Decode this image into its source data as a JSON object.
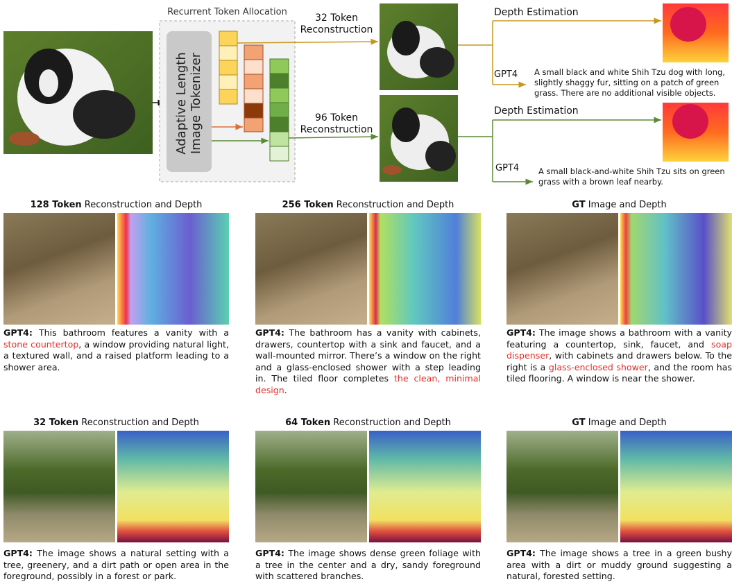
{
  "top": {
    "allocation_title": "Recurrent Token Allocation",
    "tokenizer_lines": [
      "Adaptive Length",
      "Image Tokenizer"
    ],
    "branches": [
      {
        "reconstruction_lines": [
          "32 Token",
          "Reconstruction"
        ],
        "depth_label": "Depth Estimation",
        "gpt_label": "GPT4",
        "caption": "A small black and white Shih Tzu dog with long, slightly shaggy fur, sitting on a patch of green grass. There are no additional visible objects."
      },
      {
        "reconstruction_lines": [
          "96 Token",
          "Reconstruction"
        ],
        "depth_label": "Depth Estimation",
        "gpt_label": "GPT4",
        "caption": "A small black-and-white Shih Tzu sits on green grass with a brown leaf nearby."
      }
    ]
  },
  "panels": [
    {
      "title_bold": "128 Token",
      "title_rest": " Reconstruction and Depth",
      "caption_label": "GPT4:",
      "caption": [
        {
          "text": " This bathroom features a vanity with a "
        },
        {
          "text": "stone countertop",
          "red": true
        },
        {
          "text": ", a window providing natural light, a textured wall, and a raised platform leading to a shower area."
        }
      ]
    },
    {
      "title_bold": "256 Token",
      "title_rest": " Reconstruction and Depth",
      "caption_label": "GPT4:",
      "caption": [
        {
          "text": " The bathroom has a vanity with cabinets, drawers, countertop with a sink and faucet, and a wall-mounted mirror. There’s a window on the right and a glass-enclosed shower with a step leading in. The tiled floor completes "
        },
        {
          "text": "the clean, minimal design",
          "red": true
        },
        {
          "text": "."
        }
      ]
    },
    {
      "title_bold": "GT",
      "title_rest": " Image and Depth",
      "caption_label": "GPT4:",
      "caption": [
        {
          "text": " The image shows a bathroom with a vanity featuring a countertop, sink, faucet, and "
        },
        {
          "text": "soap dispenser",
          "red": true
        },
        {
          "text": ", with cabinets and drawers below. To the right is a "
        },
        {
          "text": "glass-enclosed shower",
          "red": true
        },
        {
          "text": ", and the room has tiled flooring. A window is near the shower."
        }
      ]
    },
    {
      "title_bold": "32 Token",
      "title_rest": " Reconstruction and Depth",
      "caption_label": "GPT4:",
      "caption": [
        {
          "text": " The image shows a natural setting with a tree, greenery, and a dirt path or open area in the foreground, possibly in a forest or park."
        }
      ]
    },
    {
      "title_bold": "64 Token",
      "title_rest": " Reconstruction and Depth",
      "caption_label": "GPT4:",
      "caption": [
        {
          "text": " The image shows dense green foliage with a tree in the center and a dry, sandy foreground with scattered branches."
        }
      ]
    },
    {
      "title_bold": "GT",
      "title_rest": " Image and Depth",
      "caption_label": "GPT4:",
      "caption": [
        {
          "text": " The image shows a tree in a green bushy area with a dirt or muddy ground suggesting a natural, forested setting."
        }
      ]
    }
  ]
}
